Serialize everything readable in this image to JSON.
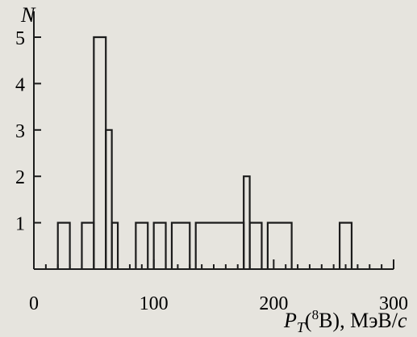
{
  "chart_data": {
    "type": "bar",
    "style": "step-histogram",
    "ylabel": "N",
    "xlabel": {
      "symbol": "P",
      "subscript": "T",
      "paren_open": "(",
      "superscript": "8",
      "element": "B",
      "unit": "), МэВ/",
      "unit_tail": "c"
    },
    "xlim": [
      0,
      300
    ],
    "ylim": [
      0,
      6
    ],
    "x_ticks": [
      0,
      100,
      200,
      300
    ],
    "y_ticks": [
      1,
      2,
      3,
      4,
      5
    ],
    "bins": [
      {
        "x0": 20,
        "x1": 30,
        "value": 1
      },
      {
        "x0": 30,
        "x1": 40,
        "value": 0
      },
      {
        "x0": 40,
        "x1": 50,
        "value": 1
      },
      {
        "x0": 50,
        "x1": 60,
        "value": 5
      },
      {
        "x0": 60,
        "x1": 65,
        "value": 3
      },
      {
        "x0": 65,
        "x1": 70,
        "value": 1
      },
      {
        "x0": 70,
        "x1": 85,
        "value": 0
      },
      {
        "x0": 85,
        "x1": 95,
        "value": 1
      },
      {
        "x0": 95,
        "x1": 100,
        "value": 0
      },
      {
        "x0": 100,
        "x1": 110,
        "value": 1
      },
      {
        "x0": 110,
        "x1": 115,
        "value": 0
      },
      {
        "x0": 115,
        "x1": 130,
        "value": 1
      },
      {
        "x0": 130,
        "x1": 135,
        "value": 0
      },
      {
        "x0": 135,
        "x1": 175,
        "value": 1
      },
      {
        "x0": 175,
        "x1": 180,
        "value": 2
      },
      {
        "x0": 180,
        "x1": 190,
        "value": 1
      },
      {
        "x0": 190,
        "x1": 195,
        "value": 0
      },
      {
        "x0": 195,
        "x1": 215,
        "value": 1
      },
      {
        "x0": 215,
        "x1": 255,
        "value": 0
      },
      {
        "x0": 255,
        "x1": 265,
        "value": 1
      }
    ]
  }
}
